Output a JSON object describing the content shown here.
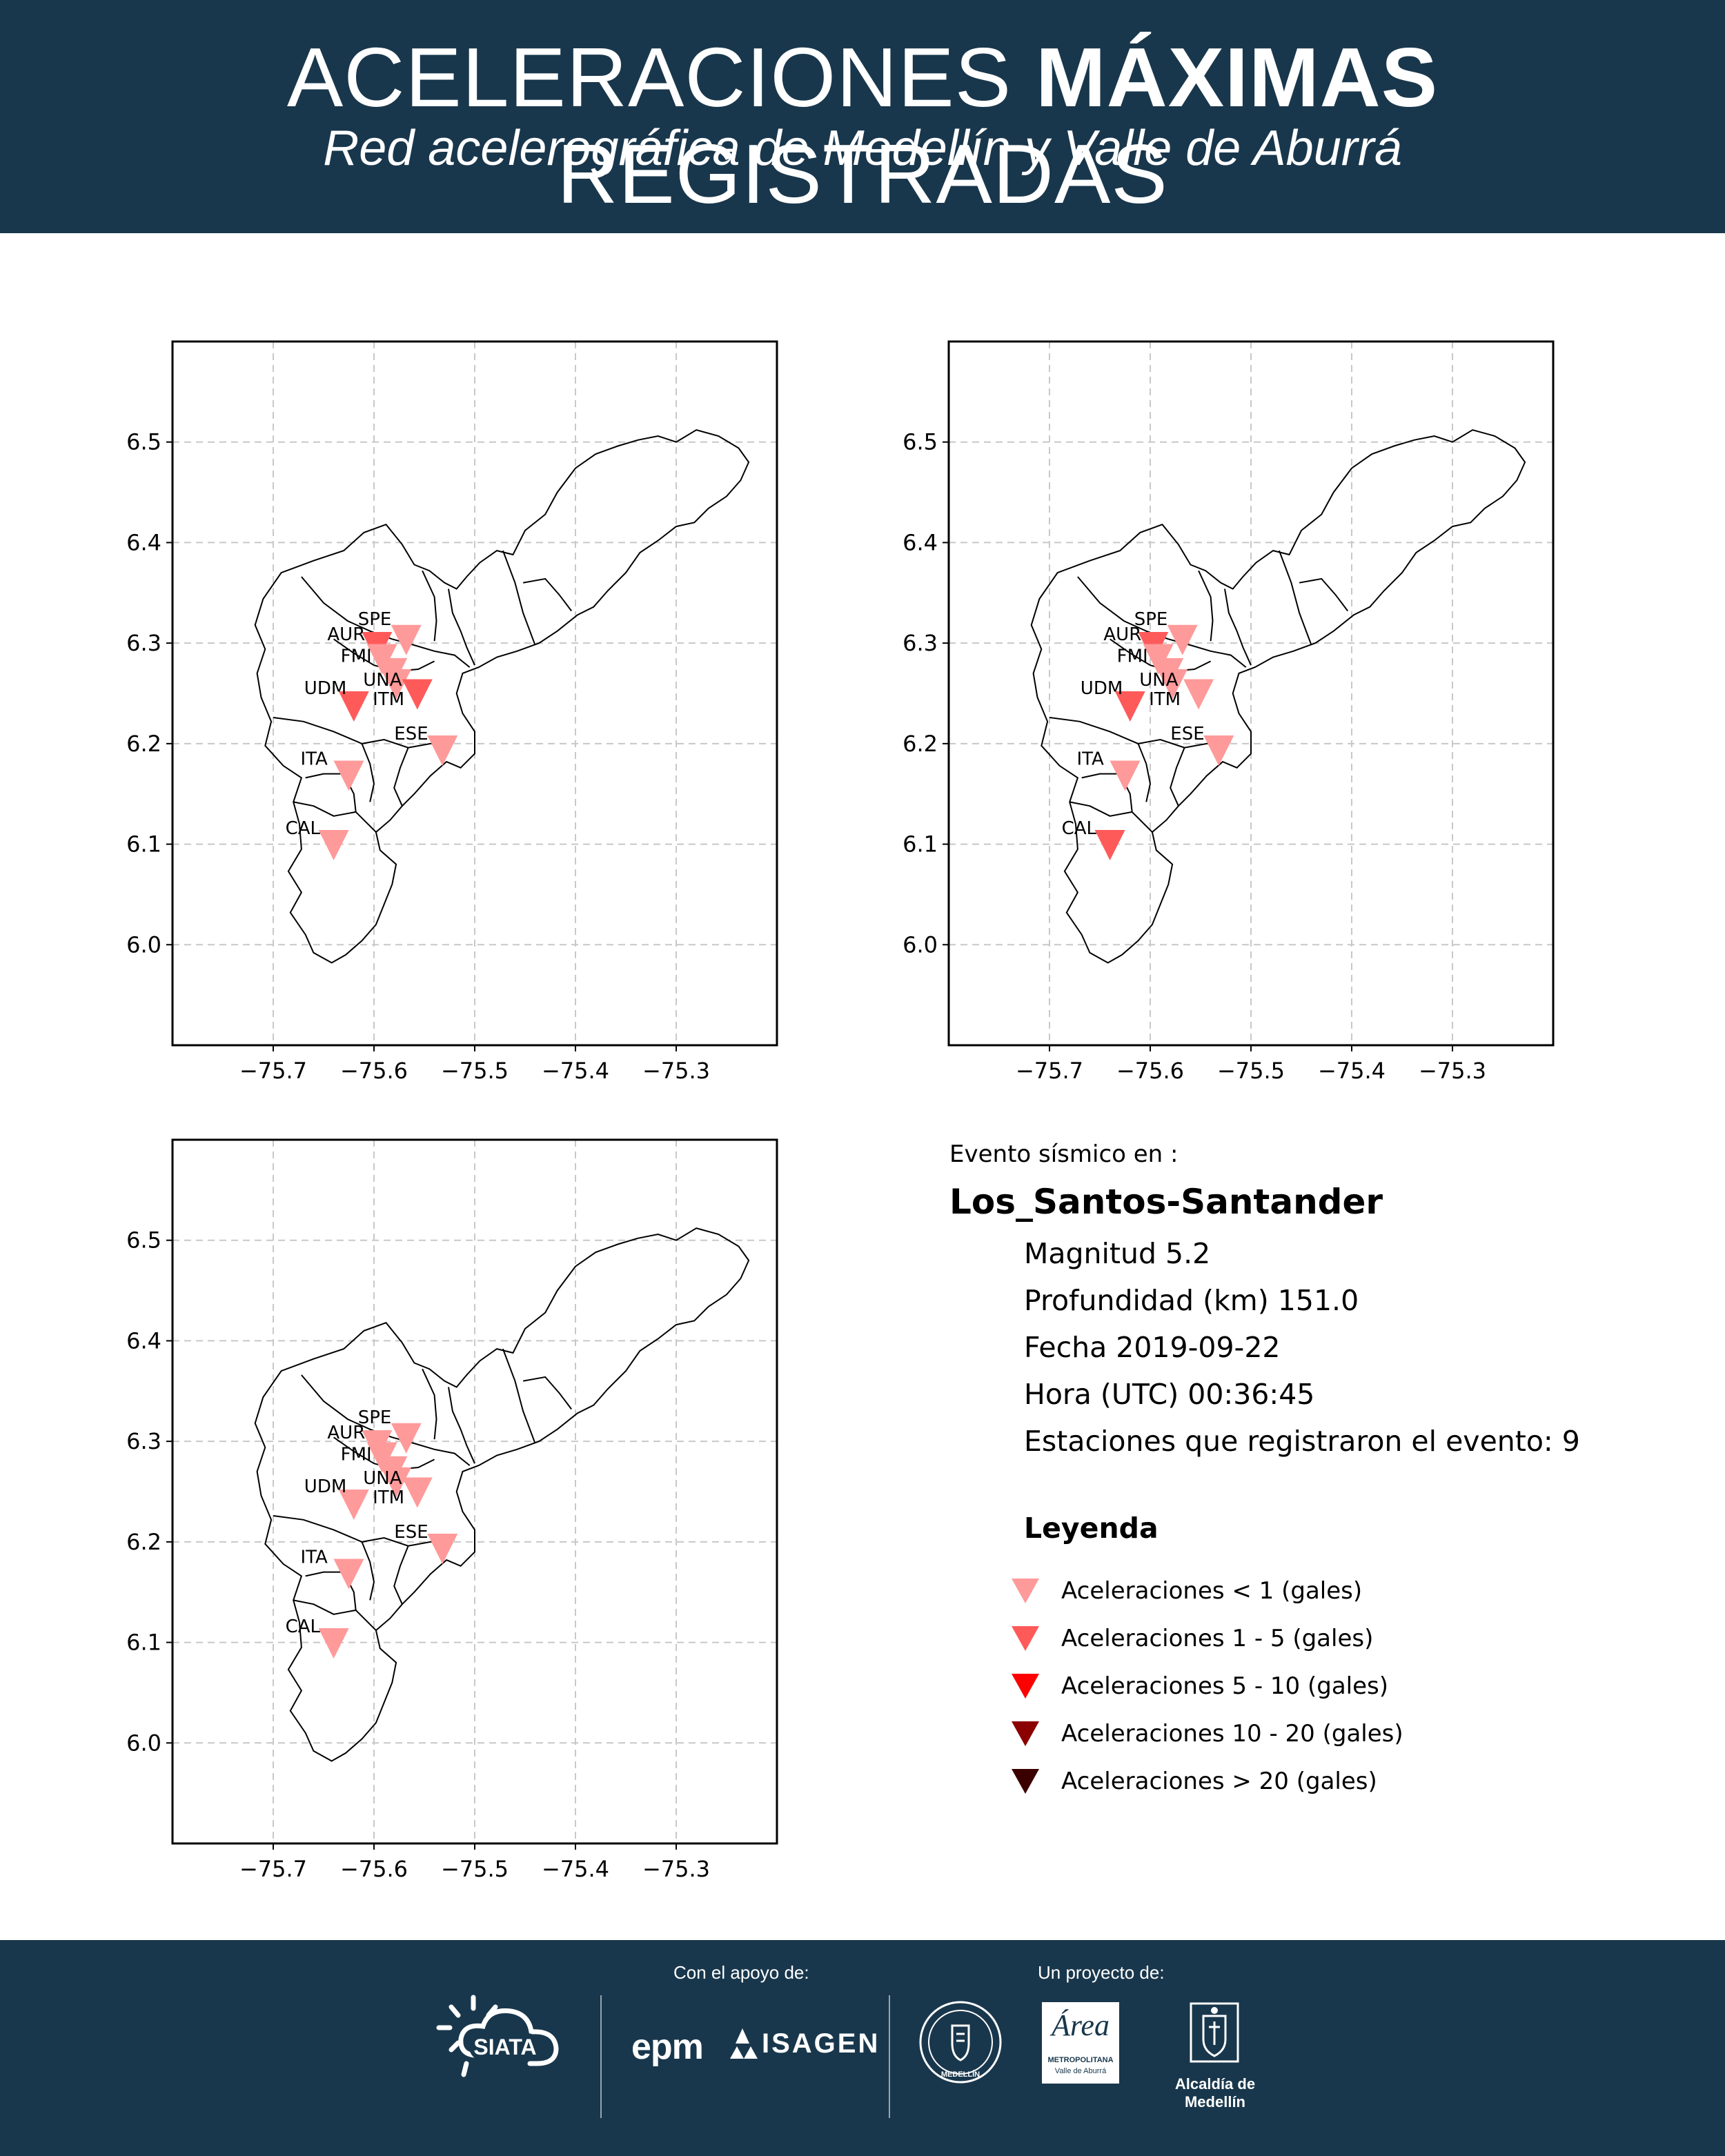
{
  "header": {
    "title_pre": "ACELERACIONES ",
    "title_bold": "MÁXIMAS",
    "title_post": " REGISTRADAS",
    "subtitle": "Red acelerográfica de Medellín y Valle de Aburrá"
  },
  "colors": {
    "header_bg": "#19374c",
    "lt1": "#ff9a9a",
    "c1_5": "#ff5a5a",
    "c5_10": "#ff0000",
    "c10_20": "#8b0000",
    "gt20": "#3a0000"
  },
  "axes": {
    "x_ticks": [
      "−75.7",
      "−75.6",
      "−75.5",
      "−75.4",
      "−75.3"
    ],
    "x_values": [
      -75.7,
      -75.6,
      -75.5,
      -75.4,
      -75.3
    ],
    "y_ticks": [
      "6.5",
      "6.4",
      "6.3",
      "6.2",
      "6.1",
      "6.0"
    ],
    "y_values": [
      6.5,
      6.4,
      6.3,
      6.2,
      6.1,
      6.0
    ],
    "xlim": [
      -75.8,
      -75.2
    ],
    "ylim": [
      5.9,
      6.6
    ],
    "grid": true
  },
  "stations": [
    {
      "code": "SPE",
      "lon": -75.568,
      "lat": 6.303
    },
    {
      "code": "AUR",
      "lon": -75.597,
      "lat": 6.296
    },
    {
      "code": "FMI",
      "lon": -75.592,
      "lat": 6.284
    },
    {
      "code": "UNA",
      "lon": -75.582,
      "lat": 6.27
    },
    {
      "code": "ITM",
      "lon": -75.578,
      "lat": 6.259
    },
    {
      "code": "UDM",
      "lon": -75.62,
      "lat": 6.237
    },
    {
      "code": "ESE",
      "lon": -75.532,
      "lat": 6.193
    },
    {
      "code": "ITA",
      "lon": -75.625,
      "lat": 6.168
    },
    {
      "code": "CAL",
      "lon": -75.64,
      "lat": 6.099
    }
  ],
  "maps": [
    {
      "classes": {
        "SPE": "lt1",
        "AUR": "c1_5",
        "FMI": "lt1",
        "UNA": "lt1",
        "ITM": "lt1",
        "UDM": "c1_5",
        "ESE": "lt1",
        "ITA": "lt1",
        "CAL": "lt1"
      },
      "extra": {
        "code": "X",
        "lon": -75.557,
        "lat": 6.249,
        "cls": "c1_5"
      }
    },
    {
      "classes": {
        "SPE": "lt1",
        "AUR": "c1_5",
        "FMI": "lt1",
        "UNA": "lt1",
        "ITM": "lt1",
        "UDM": "c1_5",
        "ESE": "lt1",
        "ITA": "lt1",
        "CAL": "c1_5"
      },
      "extra": {
        "code": "X",
        "lon": -75.552,
        "lat": 6.249,
        "cls": "lt1"
      }
    },
    {
      "classes": {
        "SPE": "lt1",
        "AUR": "lt1",
        "FMI": "lt1",
        "UNA": "lt1",
        "ITM": "lt1",
        "UDM": "lt1",
        "ESE": "lt1",
        "ITA": "lt1",
        "CAL": "lt1"
      },
      "extra": {
        "code": "X",
        "lon": -75.557,
        "lat": 6.249,
        "cls": "lt1"
      }
    }
  ],
  "event": {
    "pre_label": "Evento sísmico en :",
    "place": "Los_Santos-Santander",
    "magnitude": "Magnitud 5.2",
    "depth": "Profundidad (km) 151.0",
    "date": "Fecha 2019-09-22",
    "time": "Hora (UTC) 00:36:45",
    "stations_count": "Estaciones que registraron el evento: 9"
  },
  "legend": {
    "title": "Leyenda",
    "items": [
      {
        "label": "Aceleraciones < 1 (gales)",
        "color": "#ff9a9a"
      },
      {
        "label": "Aceleraciones 1 - 5 (gales)",
        "color": "#ff5a5a"
      },
      {
        "label": "Aceleraciones 5 - 10 (gales)",
        "color": "#ff0000"
      },
      {
        "label": "Aceleraciones 10 - 20 (gales)",
        "color": "#8b0000"
      },
      {
        "label": "Aceleraciones > 20 (gales)",
        "color": "#3a0000"
      }
    ]
  },
  "footer": {
    "support_label": "Con el apoyo de:",
    "project_label": "Un proyecto de:",
    "siata": "SIATA",
    "epm": "epm",
    "isagen": "ISAGEN",
    "medellin_seal": "MEDELLÍN",
    "area_title": "Área",
    "area_sub1": "METROPOLITANA",
    "area_sub2": "Valle de Aburrá",
    "alcaldia": "Alcaldía de Medellín"
  }
}
